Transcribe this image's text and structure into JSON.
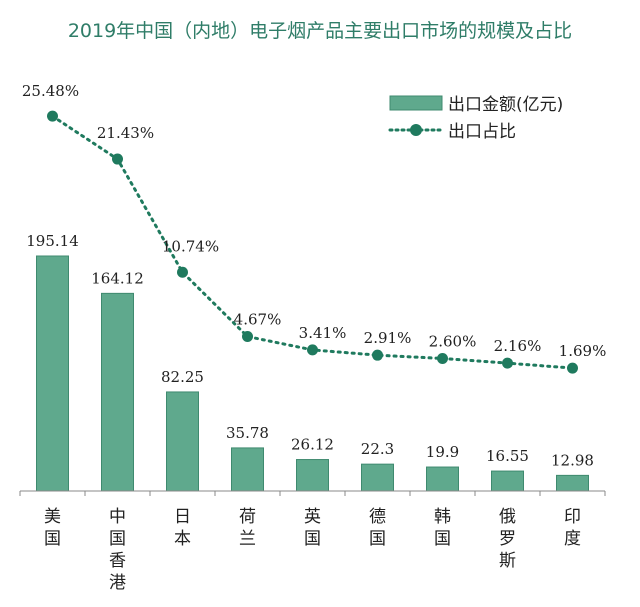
{
  "chart_data": {
    "type": "bar+line",
    "title": "2019年中国（内地）电子烟产品主要出口市场的规模及占比",
    "categories": [
      "美国",
      "中国香港",
      "日本",
      "荷兰",
      "英国",
      "德国",
      "韩国",
      "俄罗斯",
      "印度"
    ],
    "series": [
      {
        "name": "出口金额(亿元)",
        "type": "bar",
        "color": "#5fa98d",
        "values": [
          195.14,
          164.12,
          82.25,
          35.78,
          26.12,
          22.3,
          19.9,
          16.55,
          12.98
        ],
        "labels": [
          "195.14",
          "164.12",
          "82.25",
          "35.78",
          "26.12",
          "22.3",
          "19.9",
          "16.55",
          "12.98"
        ]
      },
      {
        "name": "出口占比",
        "type": "line",
        "style": "dotted",
        "color": "#1f7a5e",
        "values": [
          25.48,
          21.43,
          10.74,
          4.67,
          3.41,
          2.91,
          2.6,
          2.16,
          1.69
        ],
        "labels": [
          "25.48%",
          "21.43%",
          "10.74%",
          "4.67%",
          "3.41%",
          "2.91%",
          "2.60%",
          "2.16%",
          "1.69%"
        ]
      }
    ],
    "legend": "top-right",
    "grid": false
  }
}
